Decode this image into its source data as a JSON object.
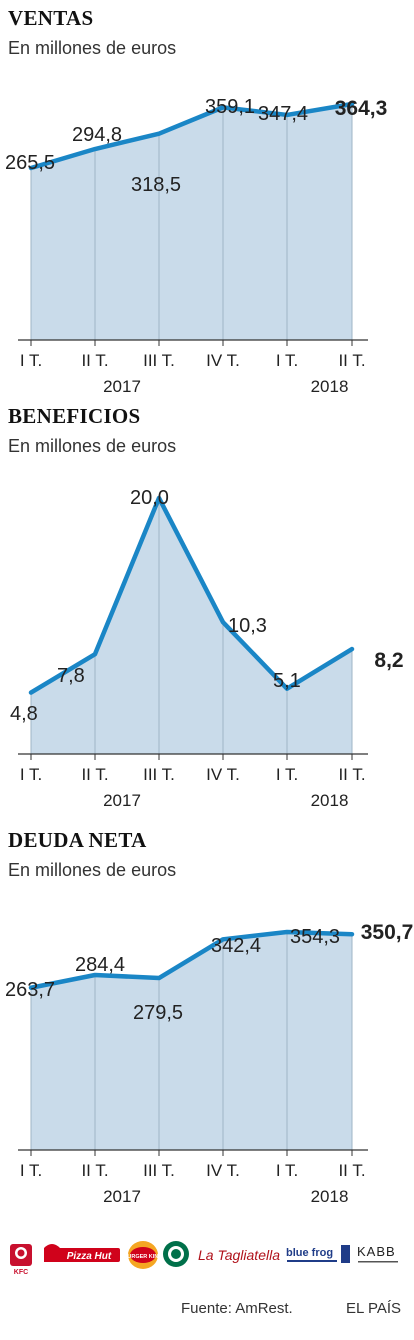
{
  "colors": {
    "line": "#1a86c6",
    "area": "#c9dbea",
    "axis": "#333333",
    "grid": "#9fb4c6"
  },
  "charts": [
    {
      "id": "ventas",
      "title": "VENTAS",
      "subtitle": "En millones de euros",
      "years": [
        "2017",
        "2018"
      ],
      "chart_data": {
        "type": "area",
        "categories": [
          "I T.",
          "II T.",
          "III T.",
          "IV T.",
          "I T.",
          "II T."
        ],
        "values": [
          265.5,
          294.8,
          318.5,
          359.1,
          347.4,
          364.3
        ],
        "value_labels": [
          "265,5",
          "294,8",
          "318,5",
          "359,1",
          "347,4",
          "364,3"
        ],
        "ylim": [
          0,
          364.3
        ]
      }
    },
    {
      "id": "beneficios",
      "title": "BENEFICIOS",
      "subtitle": "En millones de euros",
      "years": [
        "2017",
        "2018"
      ],
      "chart_data": {
        "type": "area",
        "categories": [
          "I T.",
          "II T.",
          "III T.",
          "IV T.",
          "I T.",
          "II T."
        ],
        "values": [
          4.8,
          7.8,
          20.0,
          10.3,
          5.1,
          8.2
        ],
        "value_labels": [
          "4,8",
          "7,8",
          "20,0",
          "10,3",
          "5,1",
          "8,2"
        ],
        "ylim": [
          0,
          20.0
        ]
      }
    },
    {
      "id": "deuda",
      "title": "DEUDA NETA",
      "subtitle": "En millones de euros",
      "years": [
        "2017",
        "2018"
      ],
      "chart_data": {
        "type": "area",
        "categories": [
          "I T.",
          "II T.",
          "III T.",
          "IV T.",
          "I T.",
          "II T."
        ],
        "values": [
          263.7,
          284.4,
          279.5,
          342.4,
          354.3,
          350.7
        ],
        "value_labels": [
          "263,7",
          "284,4",
          "279,5",
          "342,4",
          "354,3",
          "350,7"
        ],
        "ylim": [
          0,
          354.3
        ]
      }
    }
  ],
  "logos": [
    "KFC",
    "Pizza Hut",
    "BURGER KING",
    "Starbucks",
    "La Tagliatella",
    "blue frog",
    "KABB"
  ],
  "footer": {
    "source": "Fuente: AmRest.",
    "brand": "EL PAÍS"
  }
}
